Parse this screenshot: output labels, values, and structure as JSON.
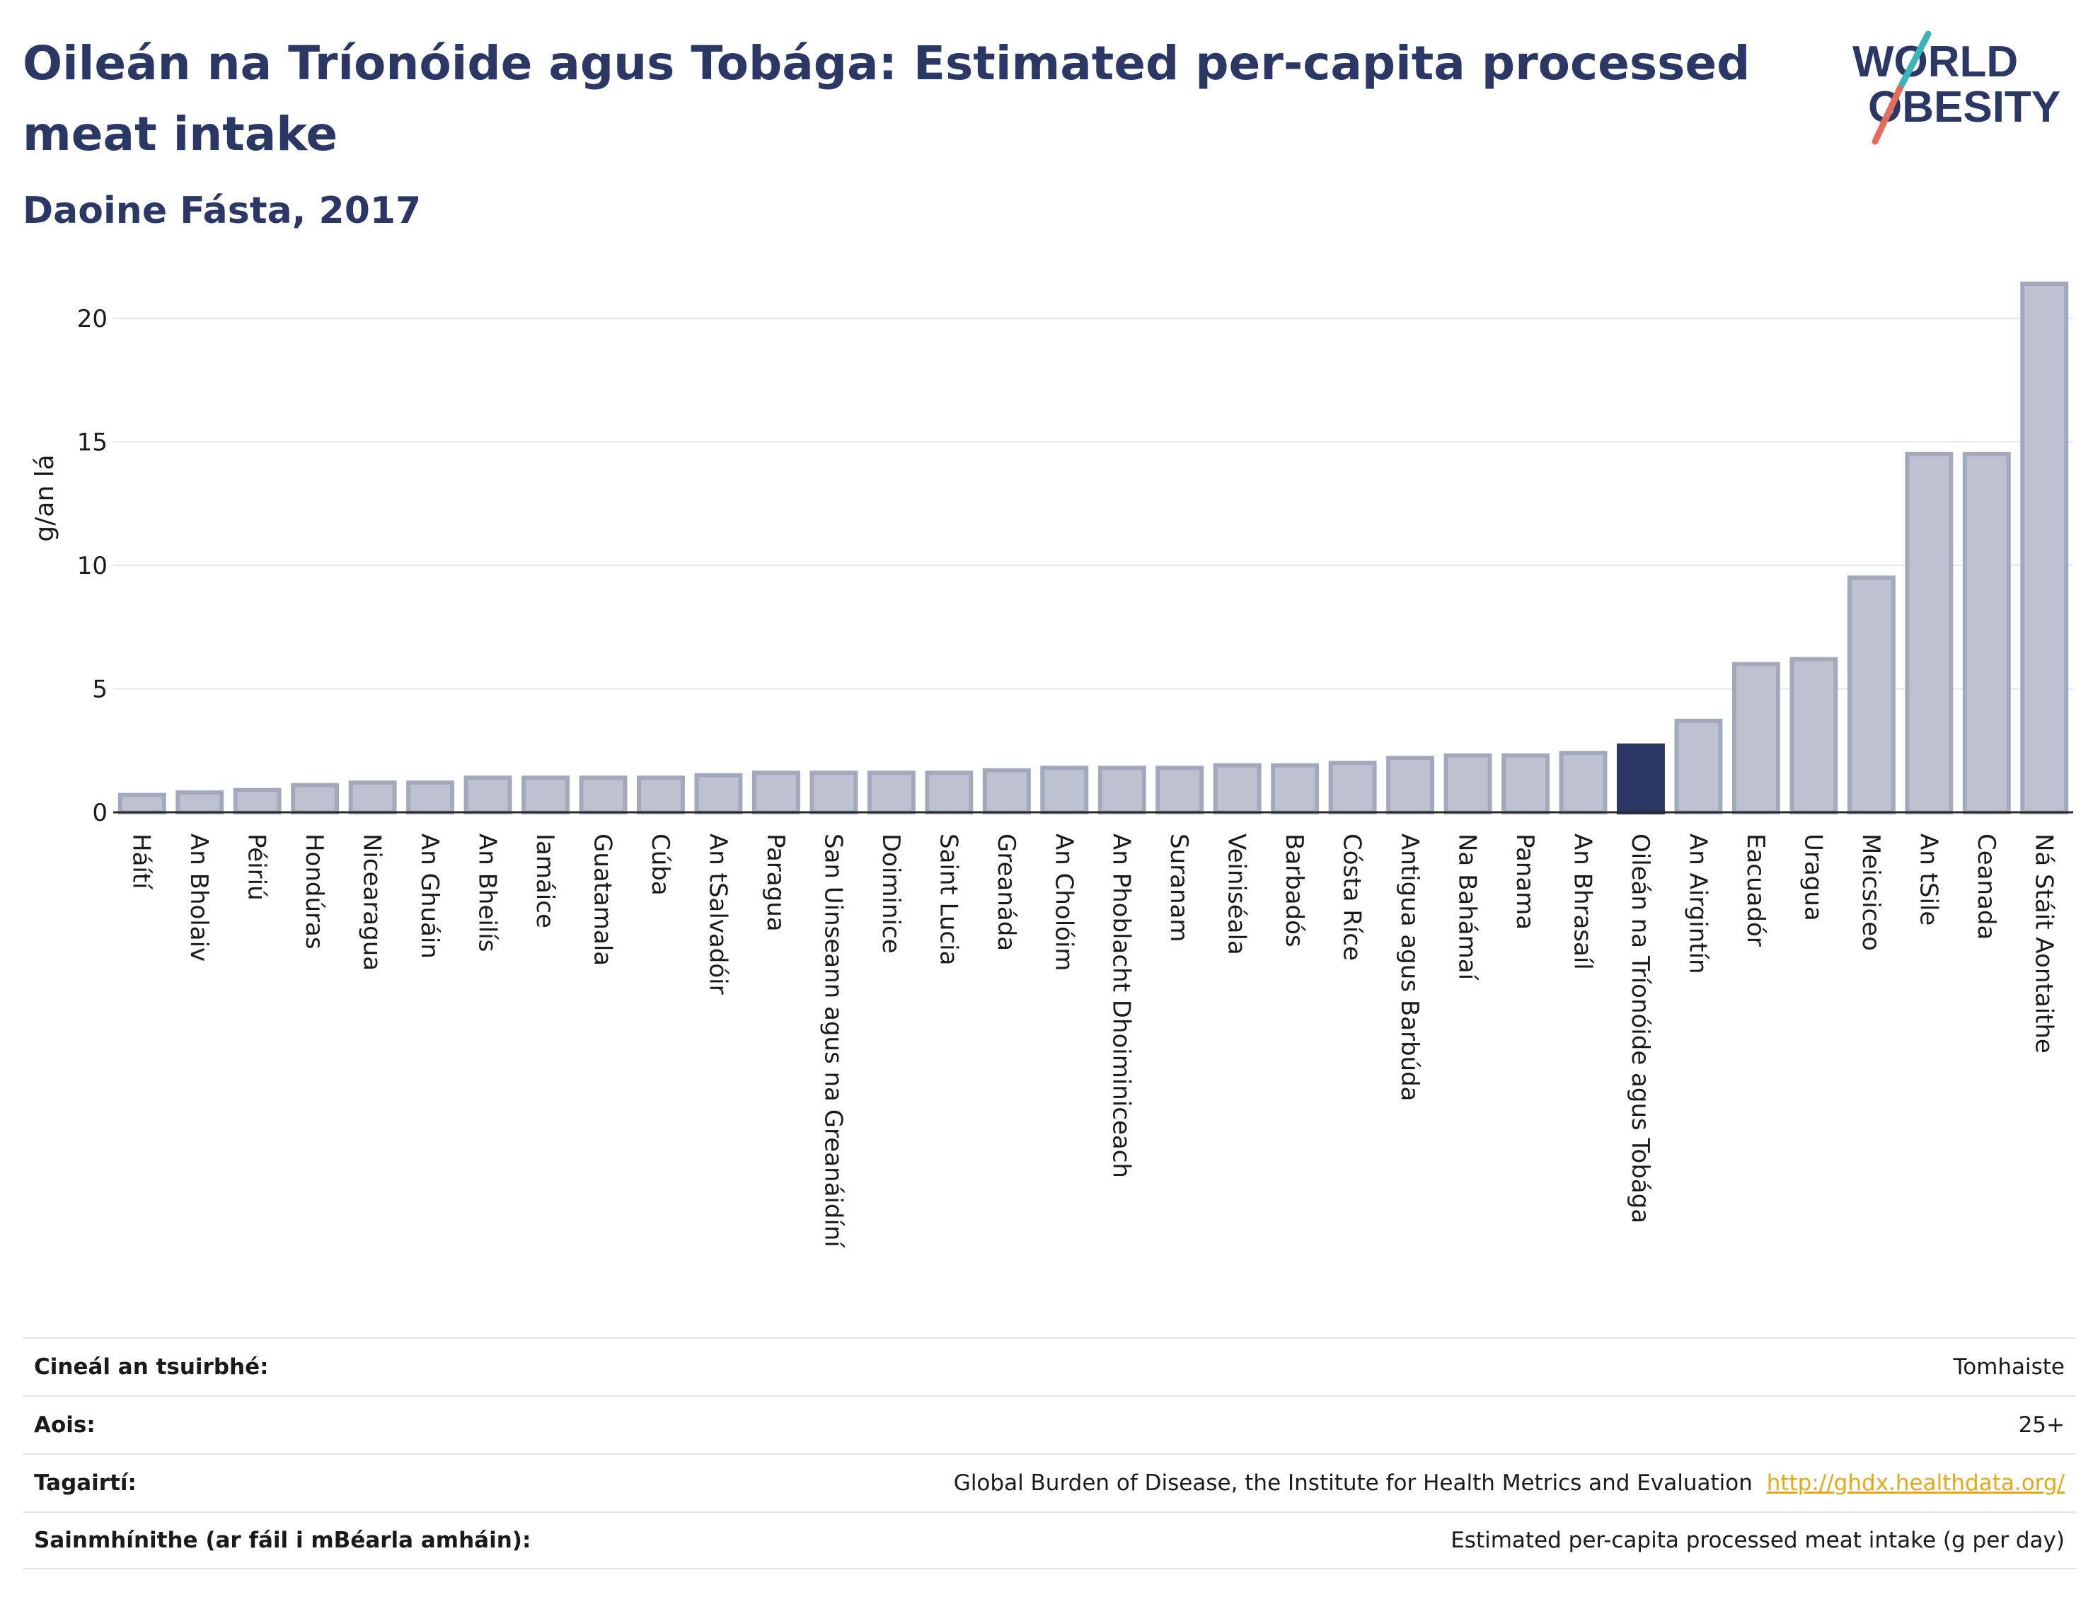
{
  "header": {
    "title": "Oileán na Tríonóide agus Tobága: Estimated per-capita processed meat intake",
    "subtitle": "Daoine Fásta, 2017",
    "logo_line1": "WORLD",
    "logo_line2": "OBESITY"
  },
  "colors": {
    "title": "#2b3764",
    "bar": "#bec2d0",
    "bar_stroke": "#a3a9bd",
    "highlight": "#2b3764",
    "logo_teal": "#3ab5bd",
    "logo_coral": "#e56b5d"
  },
  "chart_data": {
    "type": "bar",
    "ylabel": "g/an lá",
    "ylim": [
      0,
      22
    ],
    "yticks": [
      0,
      5,
      10,
      15,
      20
    ],
    "grid": true,
    "highlight": "Oileán na Tríonóide agus Tobága",
    "categories": [
      "Háítí",
      "An Bholaiv",
      "Péiriú",
      "Hondúras",
      "Nicearagua",
      "An Ghuáin",
      "An Bheilís",
      "Iamáice",
      "Guatamala",
      "Cúba",
      "An tSalvadóir",
      "Paragua",
      "San Uinseann agus na Greanáidíní",
      "Doiminice",
      "Saint Lucia",
      "Greanáda",
      "An Cholóim",
      "An Phoblacht Dhoiminiceach",
      "Suranam",
      "Veiniséala",
      "Barbadós",
      "Cósta Ríce",
      "Antigua agus Barbúda",
      "Na Bahámaí",
      "Panama",
      "An Bhrasaíl",
      "Oileán na Tríonóide agus Tobága",
      "An Airgintín",
      "Eacuadór",
      "Uragua",
      "Meicsiceo",
      "An tSile",
      "Ceanada",
      "Ná Stáit Aontaithe"
    ],
    "values": [
      0.7,
      0.8,
      0.9,
      1.1,
      1.2,
      1.2,
      1.4,
      1.4,
      1.4,
      1.4,
      1.5,
      1.6,
      1.6,
      1.6,
      1.6,
      1.7,
      1.8,
      1.8,
      1.8,
      1.9,
      1.9,
      2.0,
      2.2,
      2.3,
      2.3,
      2.4,
      2.7,
      3.7,
      6.0,
      6.2,
      9.5,
      14.5,
      14.5,
      21.4
    ]
  },
  "info": {
    "rows": [
      {
        "key": "Cineál an tsuirbhé:",
        "value": "Tomhaiste"
      },
      {
        "key": "Aois:",
        "value": "25+"
      },
      {
        "key": "Tagairtí:",
        "value": "Global Burden of Disease, the Institute for Health Metrics and Evaluation",
        "link": "http://ghdx.healthdata.org/"
      },
      {
        "key": "Sainmhínithe (ar fáil i mBéarla amháin):",
        "value": "Estimated per-capita processed meat intake (g per day)"
      }
    ]
  }
}
